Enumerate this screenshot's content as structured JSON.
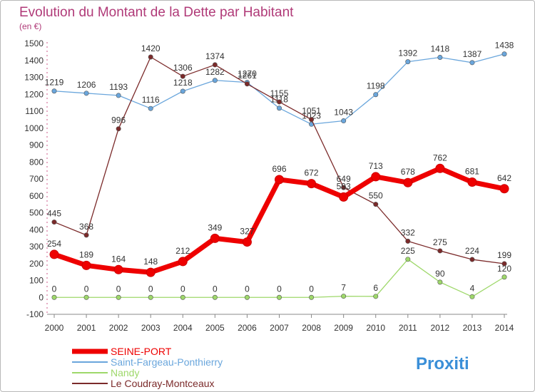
{
  "chart_data": {
    "type": "line",
    "title": "Evolution du Montant de la Dette par Habitant",
    "subtitle": "(en €)",
    "xlabel": "",
    "ylabel": "",
    "ylim": [
      -100,
      1500
    ],
    "y_ticks": [
      -100,
      0,
      100,
      200,
      300,
      400,
      500,
      600,
      700,
      800,
      900,
      1000,
      1100,
      1200,
      1300,
      1400,
      1500
    ],
    "x": [
      "2000",
      "2001",
      "2002",
      "2003",
      "2004",
      "2005",
      "2006",
      "2007",
      "2008",
      "2009",
      "2010",
      "2011",
      "2012",
      "2013",
      "2014"
    ],
    "series": [
      {
        "name": "SEINE-PORT",
        "color": "#ee0000",
        "values": [
          254,
          189,
          164,
          148,
          212,
          349,
          327,
          696,
          672,
          593,
          713,
          678,
          762,
          681,
          642
        ]
      },
      {
        "name": "Saint-Fargeau-Ponthierry",
        "color": "#6aa6dc",
        "values": [
          1219,
          1206,
          1193,
          1116,
          1218,
          1282,
          1270,
          1118,
          1023,
          1043,
          1198,
          1392,
          1418,
          1387,
          1438
        ]
      },
      {
        "name": "Nandy",
        "color": "#9ed86a",
        "values": [
          0,
          0,
          0,
          0,
          0,
          0,
          0,
          0,
          0,
          7,
          6,
          225,
          90,
          4,
          120
        ]
      },
      {
        "name": "Le Coudray-Montceaux",
        "color": "#7b2a2a",
        "values": [
          445,
          368,
          996,
          1420,
          1306,
          1374,
          1261,
          1155,
          1051,
          649,
          550,
          332,
          275,
          224,
          199
        ]
      }
    ],
    "legend": "bottom-left",
    "grid": false
  },
  "watermark": "Proxiti"
}
